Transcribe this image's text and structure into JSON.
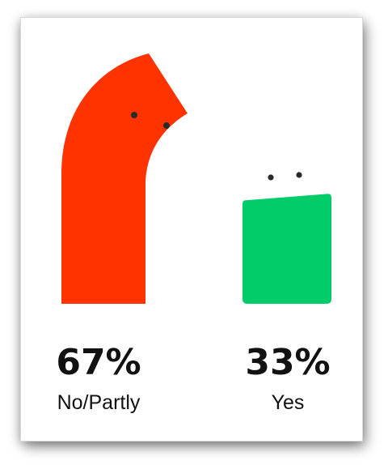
{
  "chart_data": {
    "type": "bar",
    "categories": [
      "No/Partly",
      "Yes"
    ],
    "values": [
      67,
      33
    ],
    "value_labels": [
      "67%",
      "33%"
    ],
    "colors": [
      "#ff3300",
      "#00cc6a"
    ],
    "ylim": [
      0,
      100
    ],
    "title": "",
    "xlabel": "",
    "ylabel": "",
    "grid": false,
    "legend": "none"
  }
}
